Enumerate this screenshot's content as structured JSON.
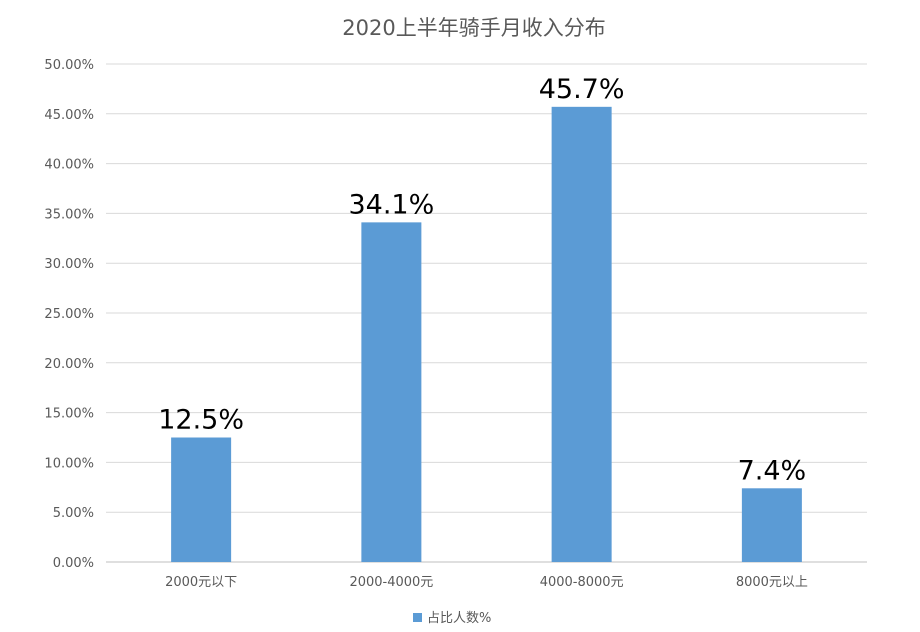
{
  "chart_data": {
    "type": "bar",
    "title": "2020上半年骑手月收入分布",
    "categories": [
      "2000元以下",
      "2000-4000元",
      "4000-8000元",
      "8000元以上"
    ],
    "series": [
      {
        "name": "占比人数%",
        "values": [
          12.5,
          34.1,
          45.7,
          7.4
        ],
        "color": "#5B9BD5"
      }
    ],
    "data_labels": [
      "12.5%",
      "34.1%",
      "45.7%",
      "7.4%"
    ],
    "y_ticks": [
      "0.00%",
      "5.00%",
      "10.00%",
      "15.00%",
      "20.00%",
      "25.00%",
      "30.00%",
      "35.00%",
      "40.00%",
      "45.00%",
      "50.00%"
    ],
    "ylim": [
      0,
      50
    ],
    "xlabel": "",
    "ylabel": "",
    "grid": true,
    "legend_position": "bottom"
  },
  "colors": {
    "bar": "#5B9BD5",
    "grid": "#D9D9D9",
    "text": "#595959"
  }
}
